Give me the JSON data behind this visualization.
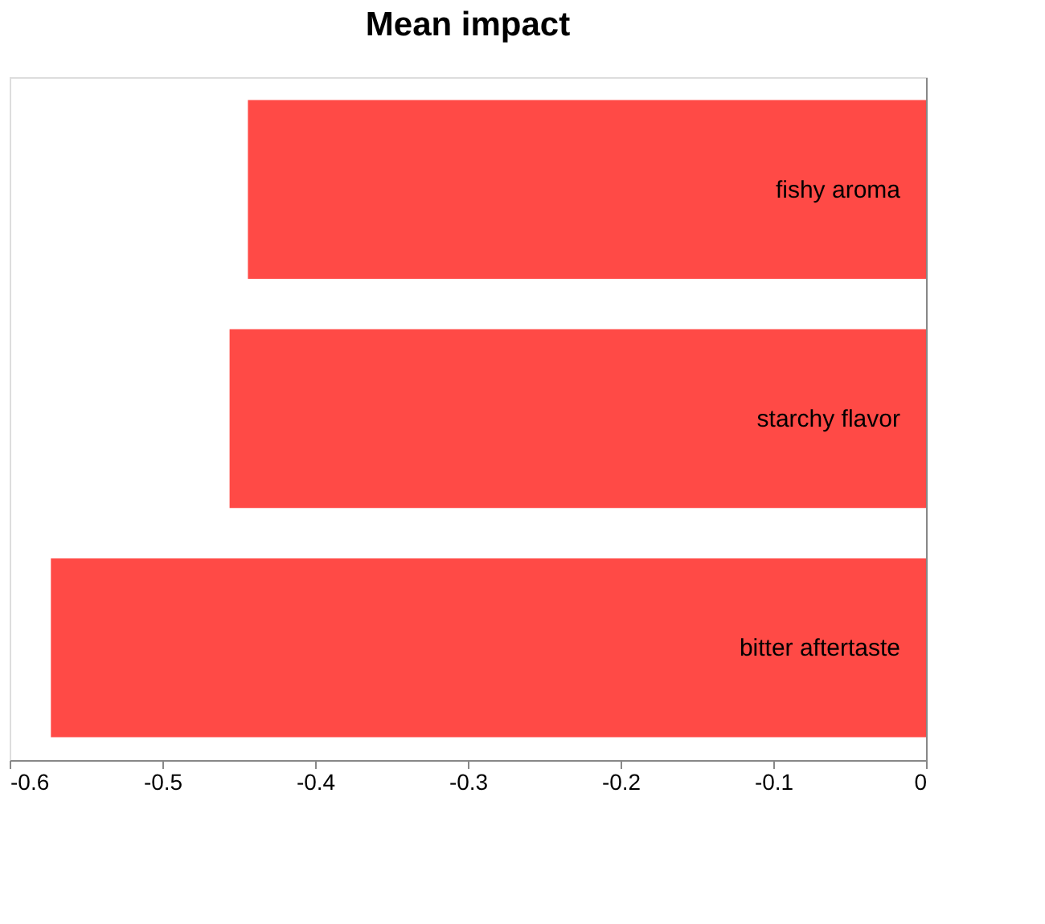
{
  "chart_data": {
    "type": "bar",
    "orientation": "horizontal",
    "title": "Mean impact",
    "categories": [
      "fishy aroma",
      "starchy flavor",
      "bitter aftertaste"
    ],
    "values": [
      -0.444,
      -0.456,
      -0.573
    ],
    "color": "#ff4a46",
    "xlim": [
      -0.6,
      0
    ],
    "xticks": [
      -0.6,
      -0.5,
      -0.4,
      -0.3,
      -0.2,
      -0.1,
      0
    ],
    "grid": false
  }
}
